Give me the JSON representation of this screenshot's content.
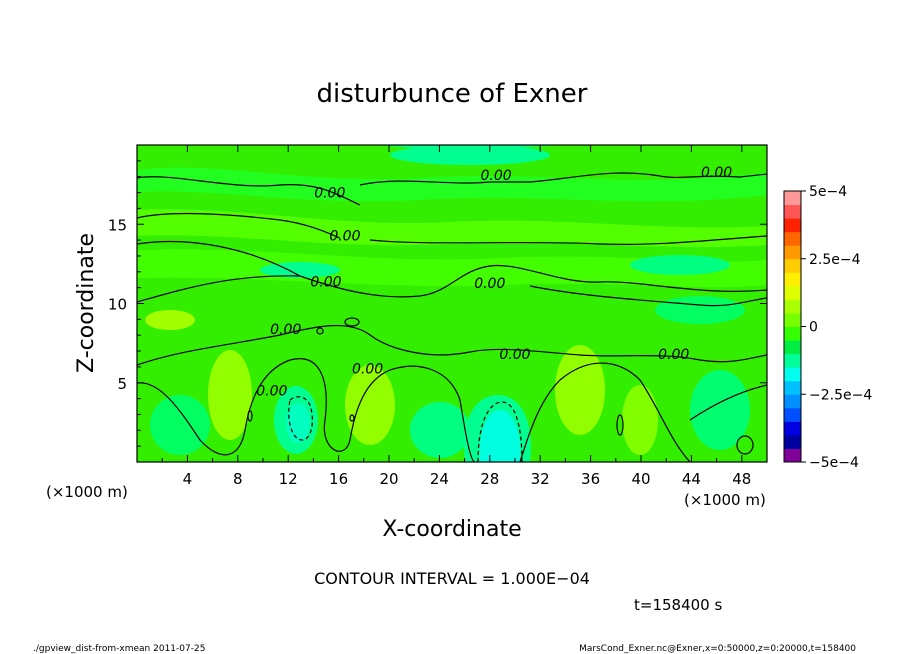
{
  "chart_data": {
    "type": "heatmap",
    "title": "disturbunce of Exner",
    "xlabel": "X-coordinate",
    "ylabel": "Z-coordinate",
    "x_unit_left": "(×1000 m)",
    "x_unit_right": "(×1000 m)",
    "xlim": [
      0,
      50
    ],
    "ylim": [
      0,
      20
    ],
    "x_ticks": [
      4,
      8,
      12,
      16,
      20,
      24,
      28,
      32,
      36,
      40,
      44,
      48
    ],
    "x_tick_labels": [
      "4",
      "8",
      "12",
      "16",
      "20",
      "24",
      "28",
      "32",
      "36",
      "40",
      "44",
      "48"
    ],
    "y_ticks": [
      5,
      10,
      15
    ],
    "y_tick_labels": [
      "5",
      "10",
      "15"
    ],
    "colorbar": {
      "vmin": -0.0005,
      "vmax": 0.0005,
      "tick_values": [
        0.0005,
        0.00025,
        0,
        -0.00025,
        -0.0005
      ],
      "tick_labels": [
        "5e−4",
        "2.5e−4",
        "0",
        "−2.5e−4",
        "−5e−4"
      ],
      "colors": [
        "#800099",
        "#0000a0",
        "#0000e0",
        "#0050ff",
        "#0090ff",
        "#00c0ff",
        "#00ffee",
        "#00ff99",
        "#00ee44",
        "#33ff00",
        "#77ff00",
        "#aaff00",
        "#ddff00",
        "#ffee00",
        "#ffcc00",
        "#ff9900",
        "#ff6600",
        "#ff2200",
        "#ff5555",
        "#ff9999"
      ]
    },
    "contour_labels": [
      {
        "text": "0.00",
        "x": 28.5,
        "z": 18.1
      },
      {
        "text": "0.00",
        "x": 46.0,
        "z": 18.3
      },
      {
        "text": "0.00",
        "x": 15.3,
        "z": 17.0
      },
      {
        "text": "0.00",
        "x": 16.5,
        "z": 14.3
      },
      {
        "text": "0.00",
        "x": 15.0,
        "z": 11.4
      },
      {
        "text": "0.00",
        "x": 28.0,
        "z": 11.3
      },
      {
        "text": "0.00",
        "x": 11.8,
        "z": 8.4
      },
      {
        "text": "0.00",
        "x": 30.0,
        "z": 6.8
      },
      {
        "text": "0.00",
        "x": 42.6,
        "z": 6.8
      },
      {
        "text": "0.00",
        "x": 18.3,
        "z": 5.9
      },
      {
        "text": "0.00",
        "x": 10.7,
        "z": 4.5
      }
    ],
    "contour_interval_text": "CONTOUR INTERVAL = 1.000E−04",
    "time_text": "t=158400 s"
  },
  "footer": {
    "left": "./gpview_dist-from-xmean  2011-07-25",
    "right": "MarsCond_Exner.nc@Exner,x=0:50000,z=0:20000,t=158400"
  },
  "colors": {
    "field_base": "#33ee00",
    "field_low": "#00ff99",
    "field_min": "#00ffee",
    "field_high": "#99ff00"
  }
}
